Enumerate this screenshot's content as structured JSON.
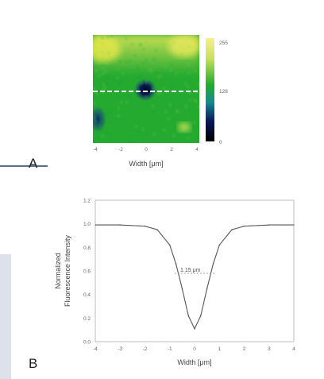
{
  "panel_a": {
    "label": "A",
    "xlabel": "Width [μm]",
    "x_ticks": [
      "-4",
      "-2",
      "0",
      "2",
      "4"
    ],
    "colorbar_ticks": [
      "255",
      "128",
      "0"
    ],
    "colors": {
      "low": "#0a1a5a",
      "mid": "#1fae2c",
      "high": "#f0f066"
    }
  },
  "panel_b": {
    "label": "B",
    "annotation": "1.15 μm",
    "y_ticks": [
      "0.0",
      "0.2",
      "0.4",
      "0.6",
      "0.8",
      "1.0",
      "1.2"
    ]
  },
  "chart_data": [
    {
      "type": "heatmap",
      "xlabel": "Width [μm]",
      "x_range": [
        -4,
        4
      ],
      "colorbar_range": [
        0,
        255
      ],
      "colorbar_ticks": [
        0,
        128,
        255
      ]
    },
    {
      "type": "line",
      "xlabel": "Width [μm]",
      "ylabel": "Normalized Fluorescence Intensity",
      "xlim": [
        -4,
        4
      ],
      "ylim": [
        0,
        1.2
      ],
      "x_ticks": [
        "-4",
        "-3",
        "-2",
        "-1",
        "0",
        "1",
        "2",
        "3",
        "4"
      ],
      "y_ticks": [
        0.0,
        0.2,
        0.4,
        0.6,
        0.8,
        1.0,
        1.2
      ],
      "series": [
        {
          "x": [
            -4,
            -3,
            -2,
            -1.5,
            -1,
            -0.75,
            -0.5,
            -0.25,
            0,
            0.25,
            0.5,
            0.75,
            1,
            1.5,
            2,
            3,
            4
          ],
          "y": [
            0.99,
            0.99,
            0.98,
            0.95,
            0.82,
            0.66,
            0.45,
            0.22,
            0.11,
            0.22,
            0.45,
            0.66,
            0.82,
            0.95,
            0.98,
            0.99,
            0.99
          ]
        }
      ],
      "annotation": "1.15 μm"
    }
  ]
}
